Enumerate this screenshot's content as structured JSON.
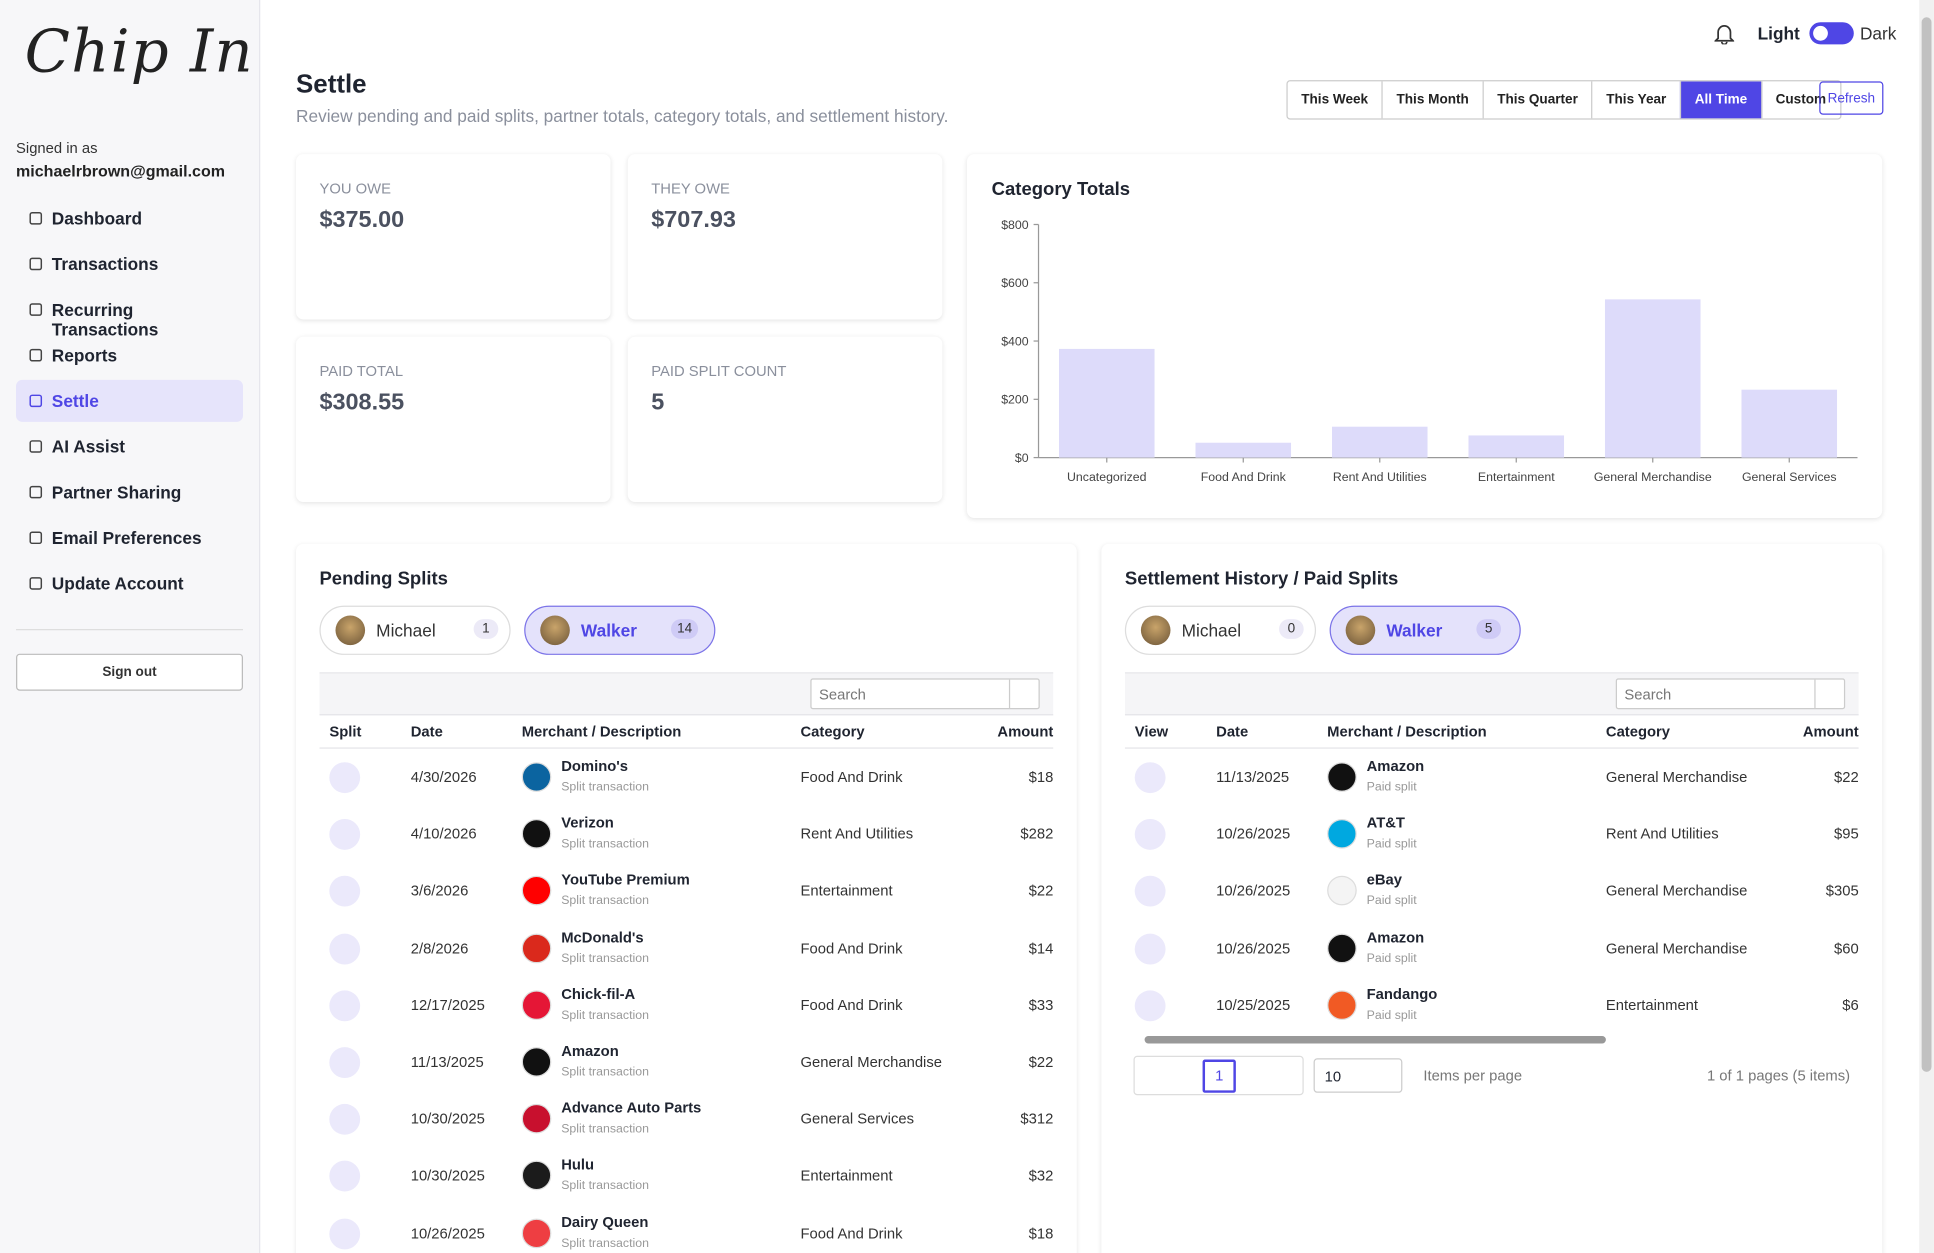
{
  "sidebar": {
    "logo": "Chip In",
    "signed_in_label": "Signed in as",
    "email": "michaelrbrown@gmail.com",
    "nav": [
      "Dashboard",
      "Transactions",
      "Recurring Transactions",
      "Reports",
      "Settle",
      "AI Assist",
      "Partner Sharing",
      "Email Preferences",
      "Update Account"
    ],
    "active_nav": 4,
    "sign_out": "Sign out"
  },
  "topbar": {
    "light": "Light",
    "dark": "Dark"
  },
  "header": {
    "title": "Settle",
    "subtitle": "Review pending and paid splits, partner totals, category totals, and settlement history.",
    "ranges": [
      "This Week",
      "This Month",
      "This Quarter",
      "This Year",
      "All Time",
      "Custom"
    ],
    "active_range": 4,
    "refresh": "Refresh"
  },
  "stats": [
    {
      "label": "YOU OWE",
      "value": "$375.00"
    },
    {
      "label": "THEY OWE",
      "value": "$707.93"
    },
    {
      "label": "PAID TOTAL",
      "value": "$308.55"
    },
    {
      "label": "PAID SPLIT COUNT",
      "value": "5"
    }
  ],
  "category_chart": {
    "type": "bar",
    "title": "Category Totals",
    "categories": [
      "Uncategorized",
      "Food And Drink",
      "Rent And Utilities",
      "Entertainment",
      "General Merchandise",
      "General Services"
    ],
    "values": [
      373,
      51,
      106,
      76,
      543,
      233
    ],
    "color": "#dddbfa",
    "ylim": [
      0,
      800
    ],
    "yticks": [
      {
        "value": 0,
        "label": "$0"
      },
      {
        "value": 200,
        "label": "$200"
      },
      {
        "value": 400,
        "label": "$400"
      },
      {
        "value": 600,
        "label": "$600"
      },
      {
        "value": 800,
        "label": "$800"
      }
    ]
  },
  "pending": {
    "title": "Pending Splits",
    "partners": [
      {
        "name": "Michael",
        "count": 1
      },
      {
        "name": "Walker",
        "count": 14
      }
    ],
    "active_partner": 1,
    "search": "Search",
    "columns": [
      "Split",
      "Date",
      "Merchant / Description",
      "Category",
      "Amount"
    ],
    "rows": [
      {
        "date": "4/30/2026",
        "merchant": "Domino's",
        "note": "Split transaction",
        "category": "Food And Drink",
        "amount": "$18",
        "logo": "#0b64a0"
      },
      {
        "date": "4/10/2026",
        "merchant": "Verizon",
        "note": "Split transaction",
        "category": "Rent And Utilities",
        "amount": "$282",
        "logo": "#111111"
      },
      {
        "date": "3/6/2026",
        "merchant": "YouTube Premium",
        "note": "Split transaction",
        "category": "Entertainment",
        "amount": "$22",
        "logo": "#ff0000"
      },
      {
        "date": "2/8/2026",
        "merchant": "McDonald's",
        "note": "Split transaction",
        "category": "Food And Drink",
        "amount": "$14",
        "logo": "#da291c"
      },
      {
        "date": "12/17/2025",
        "merchant": "Chick-fil-A",
        "note": "Split transaction",
        "category": "Food And Drink",
        "amount": "$33",
        "logo": "#e51636"
      },
      {
        "date": "11/13/2025",
        "merchant": "Amazon",
        "note": "Split transaction",
        "category": "General Merchandise",
        "amount": "$22",
        "logo": "#111111"
      },
      {
        "date": "10/30/2025",
        "merchant": "Advance Auto Parts",
        "note": "Split transaction",
        "category": "General Services",
        "amount": "$312",
        "logo": "#c8102e"
      },
      {
        "date": "10/30/2025",
        "merchant": "Hulu",
        "note": "Split transaction",
        "category": "Entertainment",
        "amount": "$32",
        "logo": "#1b1b1b"
      },
      {
        "date": "10/26/2025",
        "merchant": "Dairy Queen",
        "note": "Split transaction",
        "category": "Food And Drink",
        "amount": "$18",
        "logo": "#ee3e42"
      }
    ]
  },
  "history": {
    "title": "Settlement History / Paid Splits",
    "partners": [
      {
        "name": "Michael",
        "count": 0
      },
      {
        "name": "Walker",
        "count": 5
      }
    ],
    "active_partner": 1,
    "search": "Search",
    "columns": [
      "View",
      "Date",
      "Merchant / Description",
      "Category",
      "Amount"
    ],
    "rows": [
      {
        "date": "11/13/2025",
        "merchant": "Amazon",
        "note": "Paid split",
        "category": "General Merchandise",
        "amount": "$22",
        "logo": "#111111"
      },
      {
        "date": "10/26/2025",
        "merchant": "AT&T",
        "note": "Paid split",
        "category": "Rent And Utilities",
        "amount": "$95",
        "logo": "#00a8e0"
      },
      {
        "date": "10/26/2025",
        "merchant": "eBay",
        "note": "Paid split",
        "category": "General Merchandise",
        "amount": "$305",
        "logo": "#f4f4f4"
      },
      {
        "date": "10/26/2025",
        "merchant": "Amazon",
        "note": "Paid split",
        "category": "General Merchandise",
        "amount": "$60",
        "logo": "#111111"
      },
      {
        "date": "10/25/2025",
        "merchant": "Fandango",
        "note": "Paid split",
        "category": "Entertainment",
        "amount": "$6",
        "logo": "#f15a24"
      }
    ],
    "pager": {
      "current_page": "1",
      "page_size": "10",
      "items_per_page": "Items per page",
      "summary": "1 of 1 pages (5 items)"
    }
  }
}
